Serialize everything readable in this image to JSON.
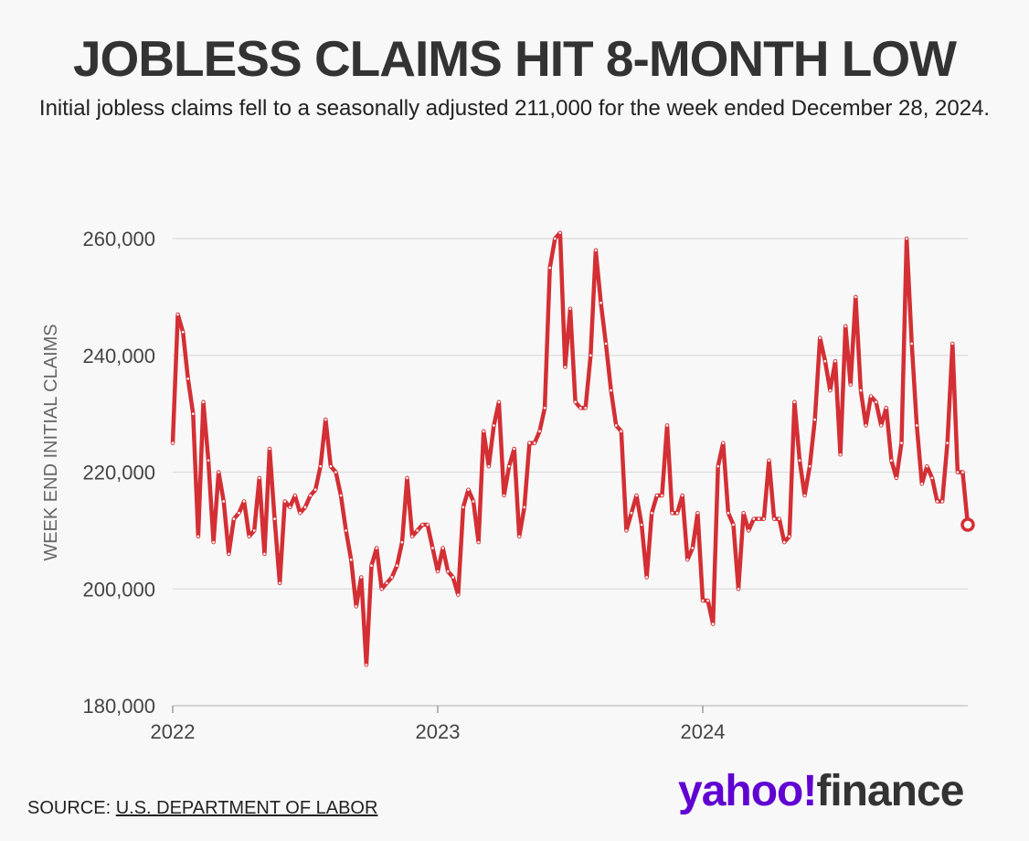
{
  "header": {
    "title": "JOBLESS CLAIMS HIT 8-MONTH LOW",
    "subtitle": "Initial jobless claims fell to a seasonally adjusted 211,000 for the week ended December 28, 2024."
  },
  "footer": {
    "source_prefix": "SOURCE:",
    "source_link": "U.S. DEPARTMENT OF LABOR",
    "brand_yahoo": "yahoo!",
    "brand_finance": "finance"
  },
  "colors": {
    "line": "#d32f34",
    "grid": "#dcdcdc",
    "brand": "#6001d2"
  },
  "chart_data": {
    "type": "line",
    "title": "JOBLESS CLAIMS HIT 8-MONTH LOW",
    "ylabel": "WEEK END INITIAL CLAIMS",
    "xlabel": "",
    "ylim": [
      180000,
      260000
    ],
    "xlim": [
      2022.0,
      2025.0
    ],
    "yticks": [
      {
        "value": 180000,
        "label": "180,000"
      },
      {
        "value": 200000,
        "label": "200,000"
      },
      {
        "value": 220000,
        "label": "220,000"
      },
      {
        "value": 240000,
        "label": "240,000"
      },
      {
        "value": 260000,
        "label": "260,000"
      }
    ],
    "xticks": [
      {
        "value": 2022,
        "label": "2022"
      },
      {
        "value": 2023,
        "label": "2023"
      },
      {
        "value": 2024,
        "label": "2024"
      }
    ],
    "grid": true,
    "series": [
      {
        "name": "Initial claims",
        "start": 2022.0,
        "step_years": 0.019231,
        "values": [
          225000,
          247000,
          244000,
          236000,
          230000,
          209000,
          232000,
          222000,
          208000,
          220000,
          215000,
          206000,
          212000,
          213000,
          215000,
          209000,
          210000,
          219000,
          206000,
          224000,
          212000,
          201000,
          215000,
          214000,
          216000,
          213000,
          214000,
          216000,
          217000,
          221000,
          229000,
          221000,
          220000,
          216000,
          210000,
          205000,
          197000,
          202000,
          187000,
          204000,
          207000,
          200000,
          201000,
          202000,
          204000,
          208000,
          219000,
          209000,
          210000,
          211000,
          211000,
          207000,
          203000,
          207000,
          203000,
          202000,
          199000,
          214000,
          217000,
          215000,
          208000,
          227000,
          221000,
          228000,
          232000,
          216000,
          221000,
          224000,
          209000,
          214000,
          225000,
          225000,
          227000,
          231000,
          255000,
          260000,
          261000,
          238000,
          248000,
          232000,
          231000,
          231000,
          240000,
          258000,
          249000,
          242000,
          234000,
          228000,
          227000,
          210000,
          213000,
          216000,
          211000,
          202000,
          213000,
          216000,
          216000,
          228000,
          213000,
          213000,
          216000,
          205000,
          207000,
          213000,
          198000,
          198000,
          194000,
          221000,
          225000,
          213000,
          211000,
          200000,
          213000,
          210000,
          212000,
          212000,
          212000,
          222000,
          212000,
          212000,
          208000,
          209000,
          232000,
          222000,
          216000,
          221000,
          229000,
          243000,
          239000,
          234000,
          239000,
          223000,
          245000,
          235000,
          250000,
          234000,
          228000,
          233000,
          232000,
          228000,
          231000,
          222000,
          219000,
          225000,
          260000,
          242000,
          228000,
          218000,
          221000,
          219000,
          215000,
          215000,
          225000,
          242000,
          220000,
          220000,
          211000
        ],
        "last_marker": true
      }
    ]
  }
}
